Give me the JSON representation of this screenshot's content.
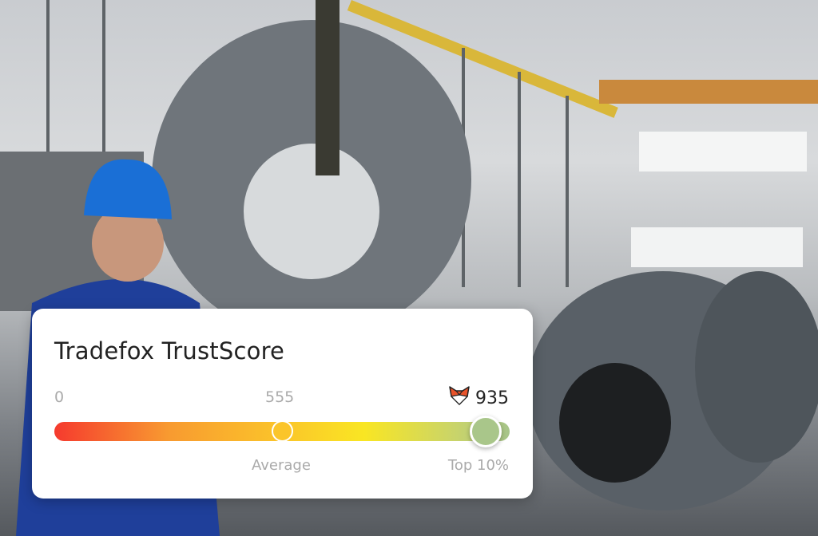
{
  "card": {
    "title": "Tradefox TrustScore",
    "min_label": "0",
    "average_value": "555",
    "score": "935",
    "score_icon": "fox-icon",
    "average_label": "Average",
    "top_label": "Top 10%",
    "gradient_colors": [
      "#f53a2e",
      "#f89a30",
      "#fbc52a",
      "#f9e623",
      "#a6c48a"
    ]
  }
}
